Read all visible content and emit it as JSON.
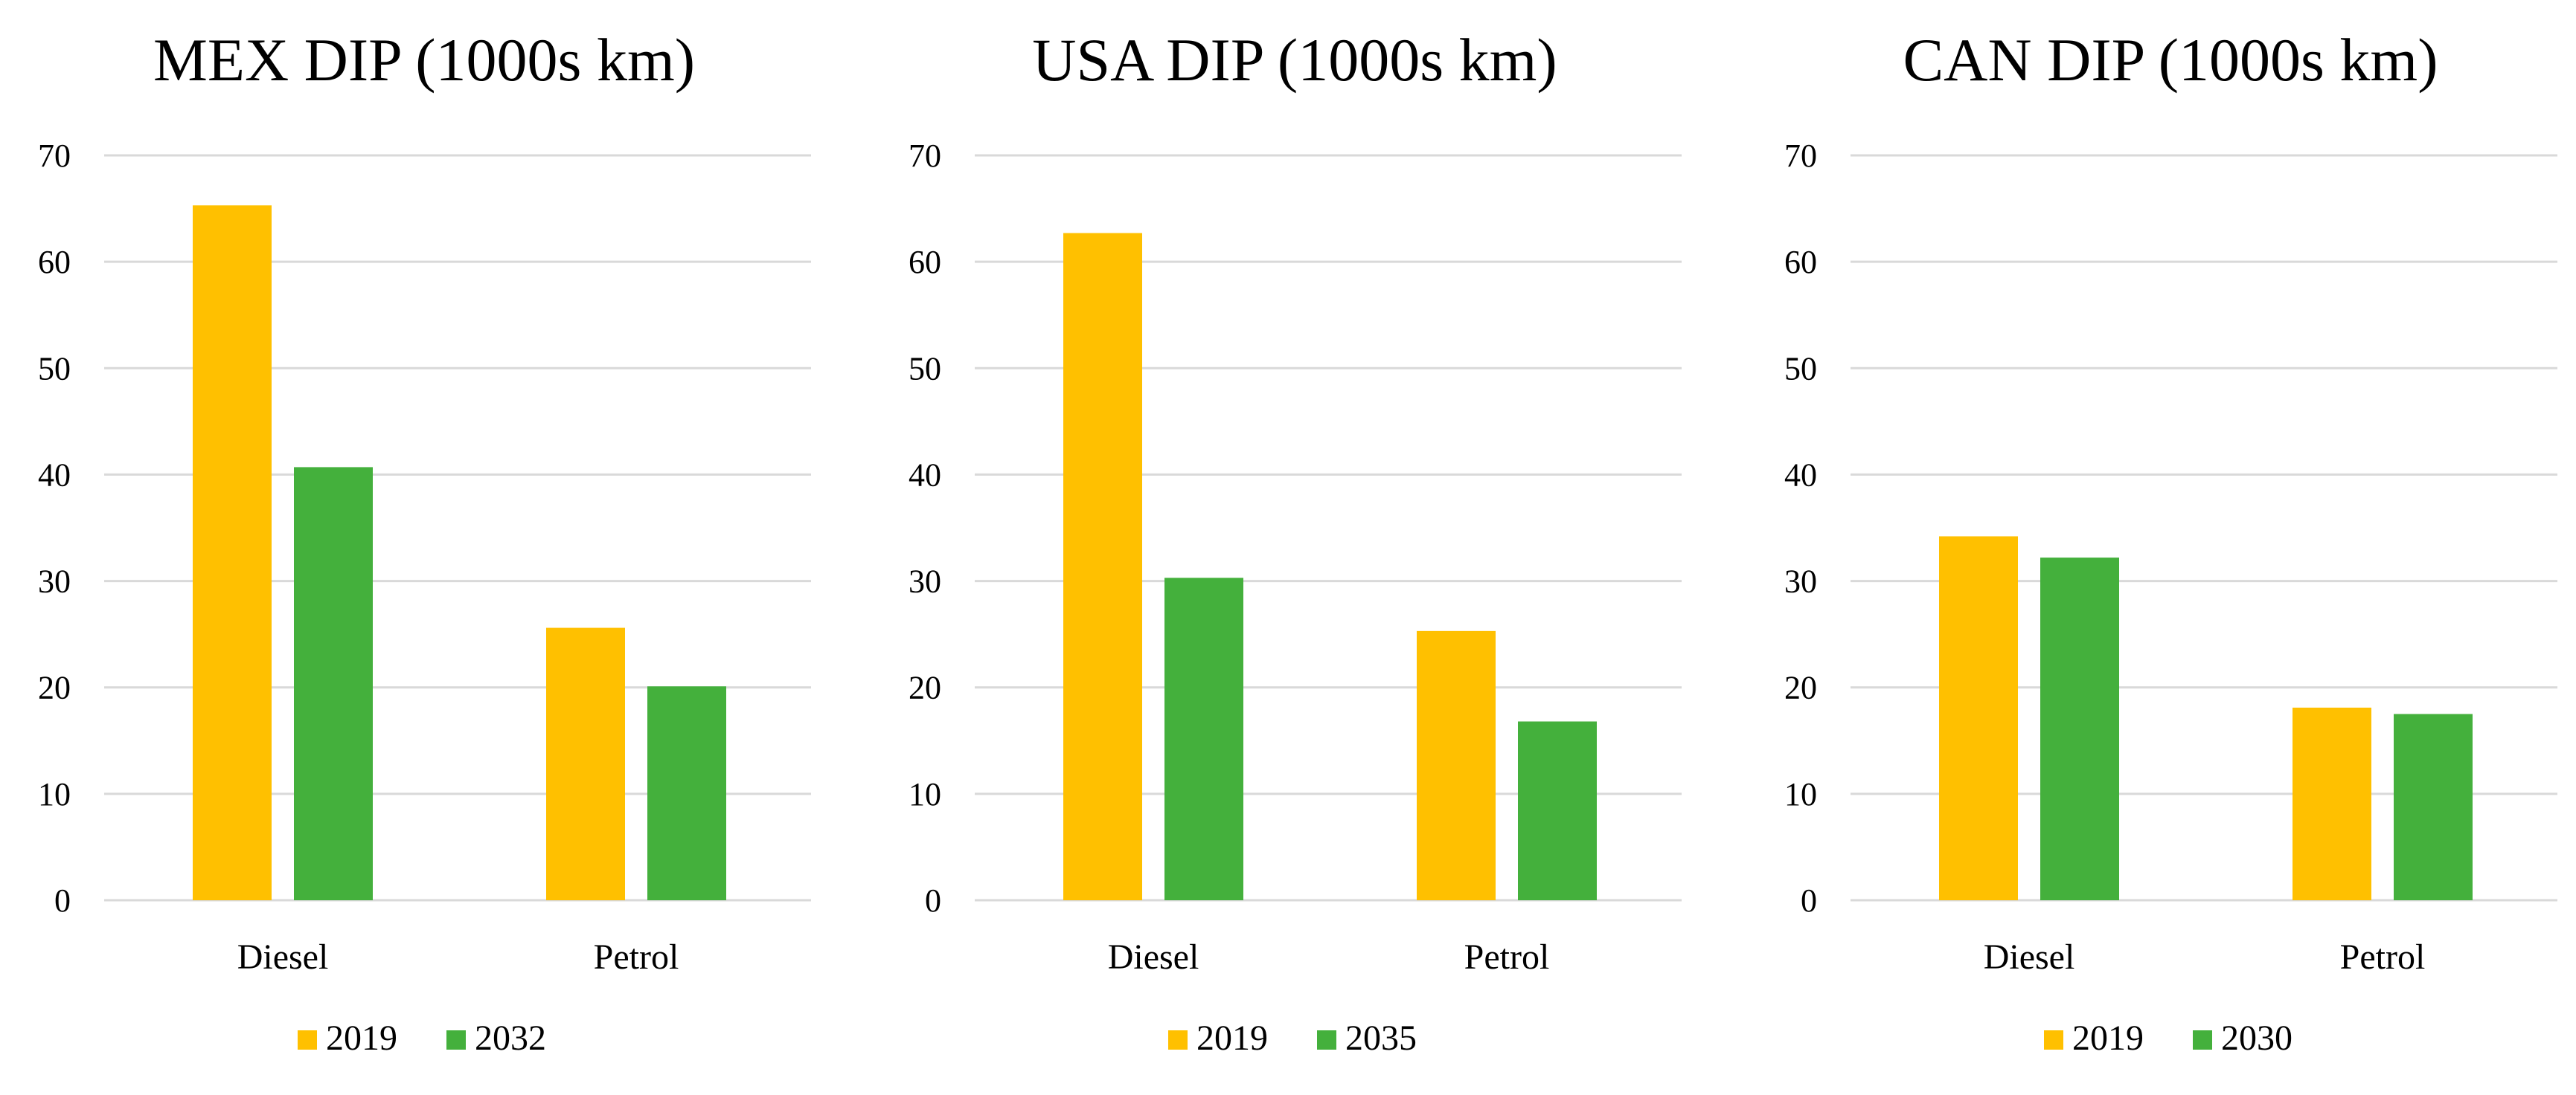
{
  "colors": {
    "series_2019": "#ffc000",
    "series_future": "#44b03c",
    "grid": "#d9d9d9"
  },
  "chart_data": [
    {
      "type": "bar",
      "title": "MEX DIP (1000s km)",
      "categories": [
        "Diesel",
        "Petrol"
      ],
      "ylim": [
        0,
        70
      ],
      "yticks": [
        "0",
        "10",
        "20",
        "30",
        "40",
        "50",
        "60",
        "70"
      ],
      "grid": true,
      "legend_position": "bottom",
      "series": [
        {
          "name": "2019",
          "values": [
            65.3,
            25.6
          ]
        },
        {
          "name": "2032",
          "values": [
            40.7,
            20.1
          ]
        }
      ]
    },
    {
      "type": "bar",
      "title": "USA DIP (1000s km)",
      "categories": [
        "Diesel",
        "Petrol"
      ],
      "ylim": [
        0,
        70
      ],
      "yticks": [
        "0",
        "10",
        "20",
        "30",
        "40",
        "50",
        "60",
        "70"
      ],
      "grid": true,
      "legend_position": "bottom",
      "series": [
        {
          "name": "2019",
          "values": [
            62.7,
            25.3
          ]
        },
        {
          "name": "2035",
          "values": [
            30.3,
            16.8
          ]
        }
      ]
    },
    {
      "type": "bar",
      "title": "CAN DIP (1000s km)",
      "categories": [
        "Diesel",
        "Petrol"
      ],
      "ylim": [
        0,
        70
      ],
      "yticks": [
        "0",
        "10",
        "20",
        "30",
        "40",
        "50",
        "60",
        "70"
      ],
      "grid": true,
      "legend_position": "bottom",
      "series": [
        {
          "name": "2019",
          "values": [
            34.2,
            18.1
          ]
        },
        {
          "name": "2030",
          "values": [
            32.2,
            17.5
          ]
        }
      ]
    }
  ]
}
